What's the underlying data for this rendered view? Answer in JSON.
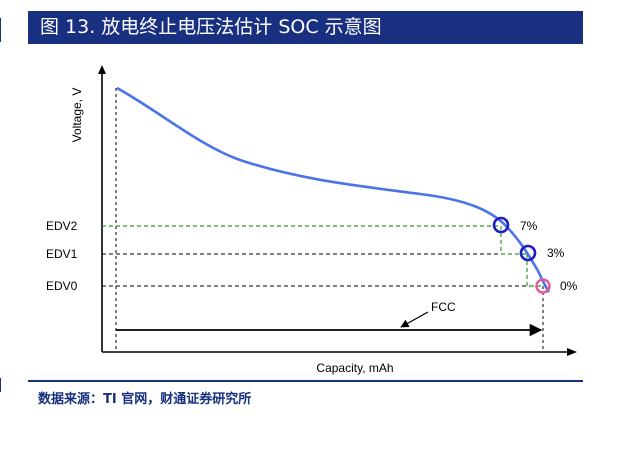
{
  "title": "图 13. 放电终止电压法估计 SOC 示意图",
  "source": "数据来源：TI 官网，财通证券研究所",
  "colors": {
    "brand": "#18307f",
    "curve": "#4b74e6",
    "green": "#2f9a2f",
    "marker_blue": "#1d1ec8",
    "marker_pink": "#e05a9a"
  },
  "diagram": {
    "y_axis_label": "Voltage, V",
    "x_axis_label": "Capacity, mAh",
    "levels": [
      {
        "label": "EDV2",
        "percent": "7%"
      },
      {
        "label": "EDV1",
        "percent": "3%"
      },
      {
        "label": "EDV0",
        "percent": "0%"
      }
    ],
    "fcc_label": "FCC"
  }
}
